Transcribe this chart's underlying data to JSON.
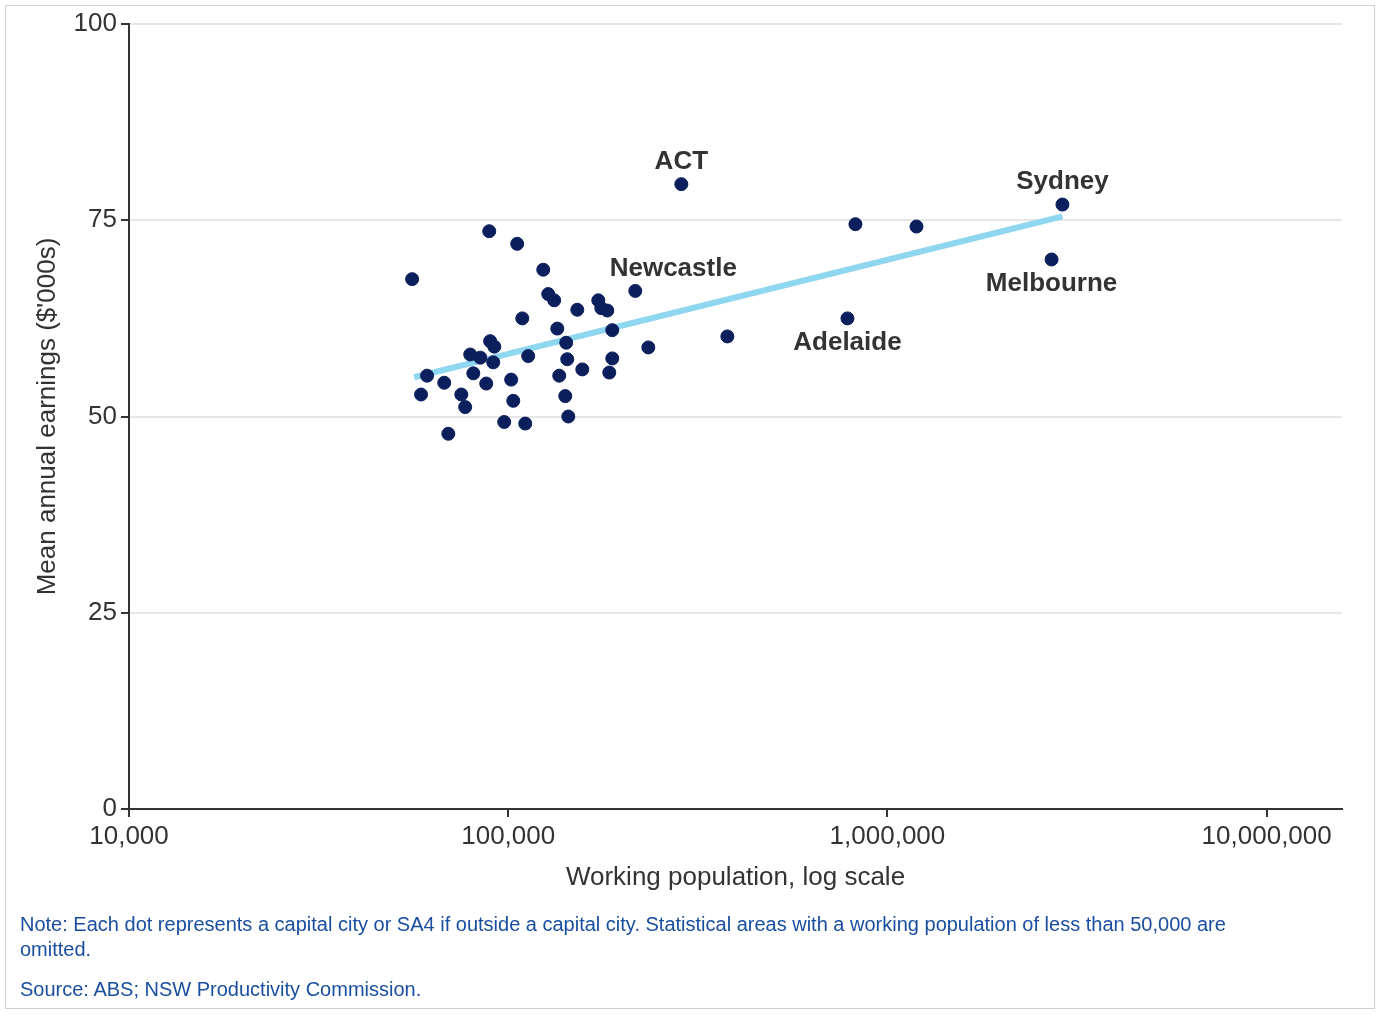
{
  "chart_data": {
    "type": "scatter",
    "xlabel": "Working population, log scale",
    "ylabel": "Mean annual earnings ($'000s)",
    "log": "x",
    "grid": "y",
    "legend": false,
    "xlim": [
      10000,
      15800000
    ],
    "ylim": [
      0,
      100
    ],
    "xticks": [
      {
        "value": 10000,
        "label": "10,000"
      },
      {
        "value": 100000,
        "label": "100,000"
      },
      {
        "value": 1000000,
        "label": "1,000,000"
      },
      {
        "value": 10000000,
        "label": "10,000,000"
      }
    ],
    "yticks": [
      0,
      25,
      50,
      75,
      100
    ],
    "series": [
      {
        "marker": "circle",
        "color": "#0b1f5c",
        "x": [
          55800,
          89100,
          105600,
          123700,
          127500,
          132200,
          108900,
          152100,
          172800,
          176000,
          182500,
          216300,
          134700,
          188100,
          142200,
          89600,
          91900,
          79400,
          84400,
          91300,
          80900,
          87500,
          61100,
          58900,
          67800,
          75200,
          77000,
          69500,
          97600,
          110900,
          101800,
          103100,
          112900,
          136300,
          143100,
          156800,
          184700,
          188100,
          144000,
          141400,
          234100,
          378300,
          286100,
          823400,
          1192800,
          784400,
          2894000,
          2709000
        ],
        "values": [
          67.5,
          73.6,
          72.0,
          68.7,
          65.6,
          64.8,
          62.5,
          63.6,
          64.8,
          63.8,
          63.5,
          66.0,
          61.2,
          61.0,
          59.4,
          59.6,
          58.9,
          57.9,
          57.5,
          56.9,
          55.5,
          54.2,
          55.2,
          52.8,
          54.3,
          52.8,
          51.2,
          47.8,
          49.3,
          49.1,
          54.7,
          52.0,
          57.7,
          55.2,
          57.3,
          56.0,
          55.6,
          57.4,
          50.0,
          52.6,
          58.8,
          60.2,
          79.6,
          74.5,
          74.2,
          62.5,
          77.0,
          70.0
        ]
      },
      {
        "type": "line",
        "marker": "none",
        "color": "#8fd6f0",
        "x": [
          56500,
          2894000
        ],
        "values": [
          55.0,
          75.5
        ]
      }
    ],
    "annotations": [
      {
        "text": "ACT",
        "x": 286100,
        "y": 79.6
      },
      {
        "text": "Newcastle",
        "x": 216300,
        "y": 66.0
      },
      {
        "text": "Sydney",
        "x": 2894000,
        "y": 77.0
      },
      {
        "text": "Melbourne",
        "x": 2709000,
        "y": 70.0
      },
      {
        "text": "Adelaide",
        "x": 784400,
        "y": 62.5
      },
      "Note: Each dot represents a capital city or SA4 if outside a capital city. Statistical areas with a working population of less than 50,000 are omitted.",
      "Source: ABS; NSW Productivity Commission."
    ]
  }
}
